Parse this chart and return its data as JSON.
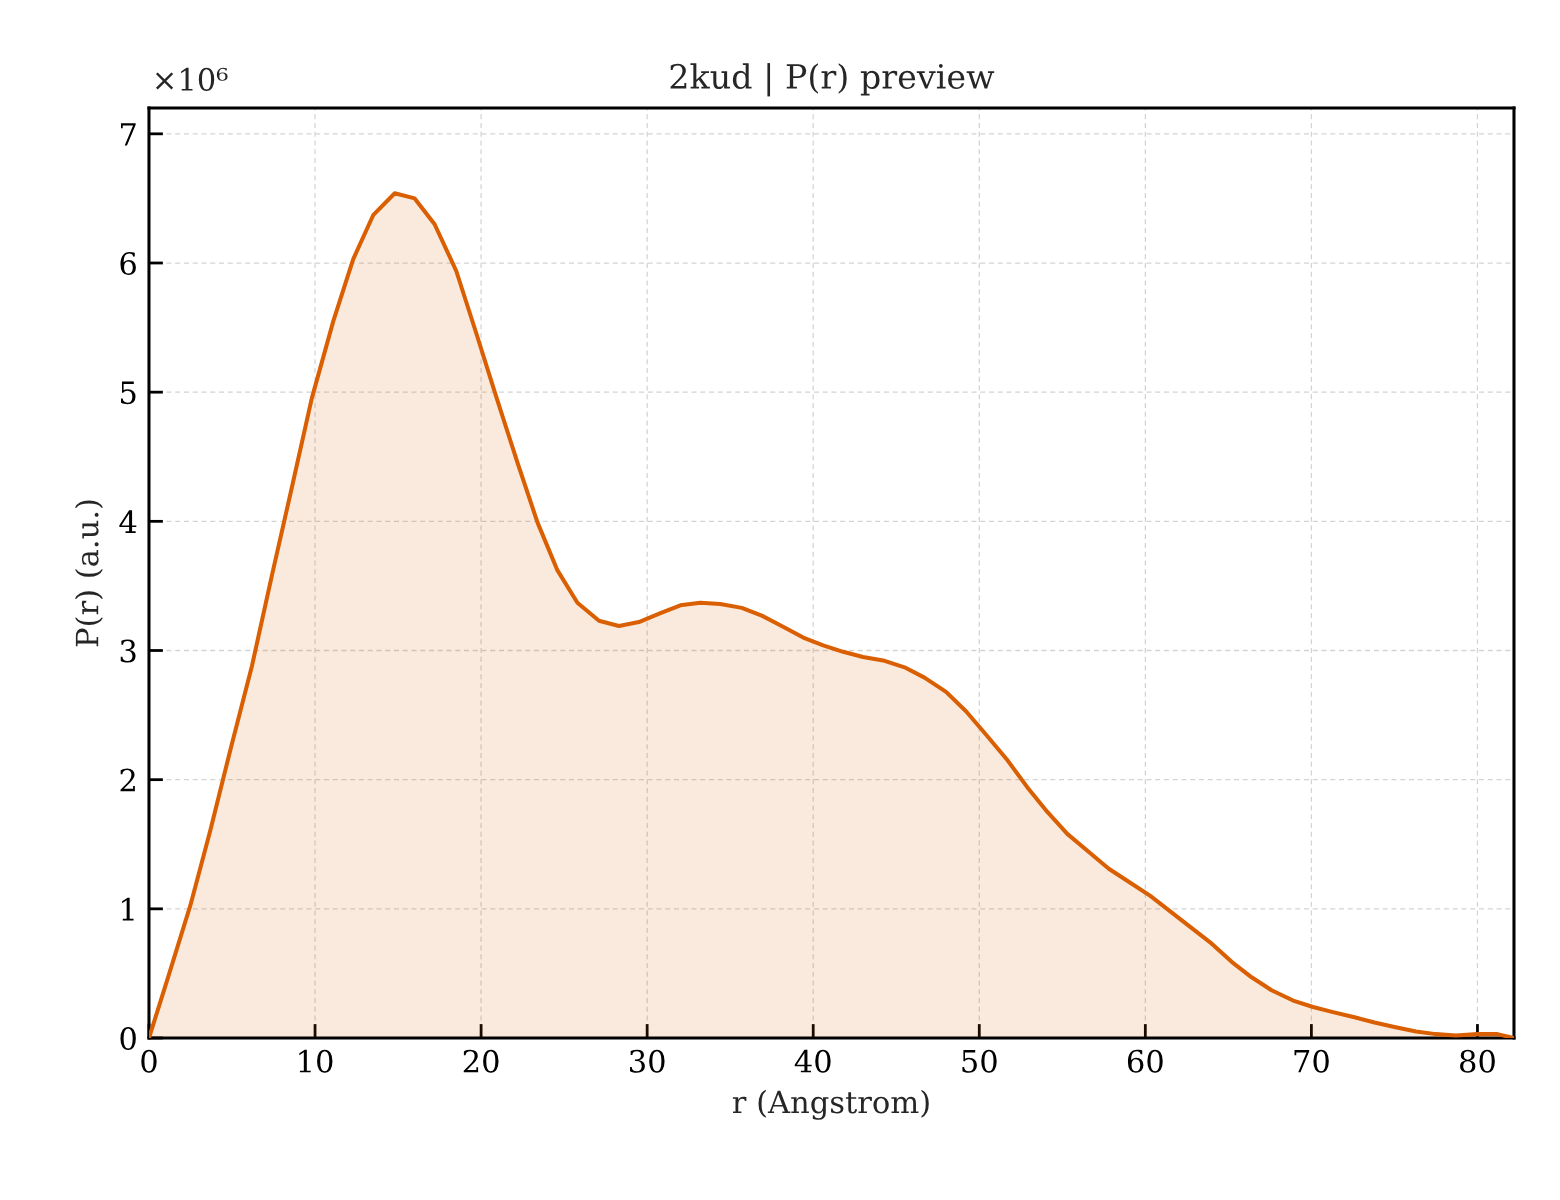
{
  "chart_data": {
    "type": "area",
    "title": "2kud | P(r) preview",
    "xlabel": "r (Angstrom)",
    "ylabel": "P(r) (a.u.)",
    "annotations": [
      "×10⁶"
    ],
    "color": "#d95f02",
    "x": [
      0,
      1.2,
      2.5,
      3.7,
      4.9,
      6.2,
      7.4,
      8.6,
      9.8,
      11.1,
      12.3,
      13.5,
      14.8,
      16.0,
      17.2,
      18.5,
      19.7,
      20.9,
      22.2,
      23.4,
      24.6,
      25.8,
      27.1,
      28.3,
      29.5,
      30.8,
      32.0,
      33.2,
      34.4,
      35.7,
      36.9,
      38.1,
      39.4,
      40.6,
      41.8,
      43.0,
      44.3,
      45.5,
      46.7,
      48.0,
      49.2,
      50.4,
      51.7,
      52.9,
      54.1,
      55.3,
      56.6,
      57.8,
      59.0,
      60.3,
      61.5,
      62.7,
      64.0,
      65.2,
      66.4,
      67.6,
      68.9,
      70.1,
      71.3,
      72.6,
      73.8,
      75.0,
      76.3,
      77.5,
      78.7,
      80.0,
      81.2,
      82.2
    ],
    "values": [
      0,
      0.49,
      1.03,
      1.61,
      2.23,
      2.88,
      3.58,
      4.26,
      4.95,
      5.55,
      6.03,
      6.37,
      6.54,
      6.5,
      6.3,
      5.94,
      5.46,
      4.97,
      4.45,
      3.99,
      3.62,
      3.37,
      3.23,
      3.19,
      3.22,
      3.29,
      3.35,
      3.37,
      3.36,
      3.33,
      3.27,
      3.19,
      3.1,
      3.04,
      2.99,
      2.95,
      2.92,
      2.87,
      2.79,
      2.68,
      2.53,
      2.35,
      2.15,
      1.94,
      1.75,
      1.58,
      1.44,
      1.31,
      1.21,
      1.1,
      0.98,
      0.86,
      0.73,
      0.59,
      0.47,
      0.37,
      0.29,
      0.24,
      0.2,
      0.16,
      0.12,
      0.085,
      0.05,
      0.03,
      0.02,
      0.03,
      0.03,
      0
    ],
    "xlim": [
      0,
      82.2
    ],
    "ylim": [
      0,
      7.2
    ],
    "xticks": [
      0,
      10,
      20,
      30,
      40,
      50,
      60,
      70,
      80
    ],
    "yticks": [
      0,
      1,
      2,
      3,
      4,
      5,
      6,
      7
    ],
    "grid": true,
    "line_style": "solid"
  }
}
